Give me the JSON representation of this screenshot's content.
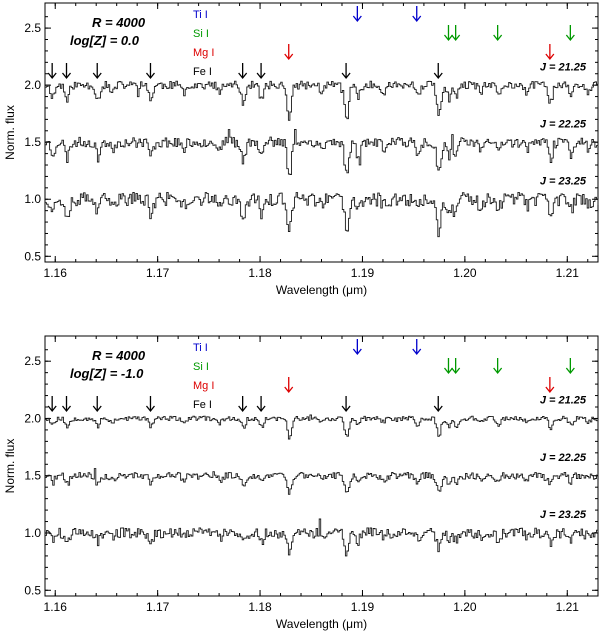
{
  "chart_data": [
    {
      "type": "line",
      "annotation_lines": [
        "R = 4000",
        "log[Z] = 0.0"
      ],
      "xlabel": "Wavelength (μm)",
      "ylabel": "Norm. flux",
      "xlim": [
        1.159,
        1.213
      ],
      "ylim": [
        0.45,
        2.72
      ],
      "xticks": [
        1.16,
        1.17,
        1.18,
        1.19,
        1.2,
        1.21
      ],
      "xtick_labels": [
        "1.16",
        "1.17",
        "1.18",
        "1.19",
        "1.20",
        "1.21"
      ],
      "yticks": [
        0.5,
        1.0,
        1.5,
        2.0,
        2.5
      ],
      "ytick_labels": [
        "0.5",
        "1.0",
        "1.5",
        "2.0",
        "2.5"
      ],
      "grid": false,
      "series": [
        {
          "name": "J = 21.25",
          "offset": 2.0,
          "noise": 0.035,
          "seed": 11,
          "line_scale": 1.0
        },
        {
          "name": "J = 22.25",
          "offset": 1.5,
          "noise": 0.045,
          "seed": 23,
          "line_scale": 1.0
        },
        {
          "name": "J = 23.25",
          "offset": 1.0,
          "noise": 0.06,
          "seed": 37,
          "line_scale": 1.0
        }
      ]
    },
    {
      "type": "line",
      "annotation_lines": [
        "R = 4000",
        "log[Z] = -1.0"
      ],
      "xlabel": "Wavelength (μm)",
      "ylabel": "Norm. flux",
      "xlim": [
        1.159,
        1.213
      ],
      "ylim": [
        0.45,
        2.72
      ],
      "xticks": [
        1.16,
        1.17,
        1.18,
        1.19,
        1.2,
        1.21
      ],
      "xtick_labels": [
        "1.16",
        "1.17",
        "1.18",
        "1.19",
        "1.20",
        "1.21"
      ],
      "yticks": [
        0.5,
        1.0,
        1.5,
        2.0,
        2.5
      ],
      "ytick_labels": [
        "0.5",
        "1.0",
        "1.5",
        "2.0",
        "2.5"
      ],
      "grid": false,
      "series": [
        {
          "name": "J = 21.25",
          "offset": 2.0,
          "noise": 0.02,
          "seed": 53,
          "line_scale": 0.55
        },
        {
          "name": "J = 22.25",
          "offset": 1.5,
          "noise": 0.03,
          "seed": 71,
          "line_scale": 0.55
        },
        {
          "name": "J = 23.25",
          "offset": 1.0,
          "noise": 0.045,
          "seed": 89,
          "line_scale": 0.55
        }
      ]
    }
  ],
  "legend": [
    {
      "label": "Ti I",
      "color": "#0000cc"
    },
    {
      "label": "Si I",
      "color": "#009900"
    },
    {
      "label": "Mg I",
      "color": "#dd0000"
    },
    {
      "label": "Fe I",
      "color": "#000000"
    }
  ],
  "line_markers": {
    "Ti I": [
      1.1895,
      1.1953
    ],
    "Si I": [
      1.1984,
      1.1991,
      1.2032,
      1.2103
    ],
    "Mg I": [
      1.1828,
      1.2083
    ],
    "Fe I": [
      1.1597,
      1.1611,
      1.1641,
      1.1693,
      1.1783,
      1.1801,
      1.1884,
      1.1974
    ]
  },
  "absorption_lines": [
    {
      "x": 1.1597,
      "depth": 0.1
    },
    {
      "x": 1.1611,
      "depth": 0.14
    },
    {
      "x": 1.1641,
      "depth": 0.13
    },
    {
      "x": 1.1693,
      "depth": 0.12
    },
    {
      "x": 1.1783,
      "depth": 0.15
    },
    {
      "x": 1.1801,
      "depth": 0.13
    },
    {
      "x": 1.1828,
      "depth": 0.3
    },
    {
      "x": 1.1884,
      "depth": 0.3
    },
    {
      "x": 1.1895,
      "depth": 0.12
    },
    {
      "x": 1.1953,
      "depth": 0.1
    },
    {
      "x": 1.1974,
      "depth": 0.28
    },
    {
      "x": 1.1984,
      "depth": 0.12
    },
    {
      "x": 1.1991,
      "depth": 0.12
    },
    {
      "x": 1.2032,
      "depth": 0.1
    },
    {
      "x": 1.2083,
      "depth": 0.15
    },
    {
      "x": 1.2103,
      "depth": 0.1
    },
    {
      "x": 1.1655,
      "depth": 0.07
    },
    {
      "x": 1.1725,
      "depth": 0.06
    },
    {
      "x": 1.176,
      "depth": 0.07
    },
    {
      "x": 1.186,
      "depth": 0.06
    },
    {
      "x": 1.192,
      "depth": 0.06
    },
    {
      "x": 1.2015,
      "depth": 0.07
    },
    {
      "x": 1.206,
      "depth": 0.06
    },
    {
      "x": 1.212,
      "depth": 0.06
    }
  ]
}
